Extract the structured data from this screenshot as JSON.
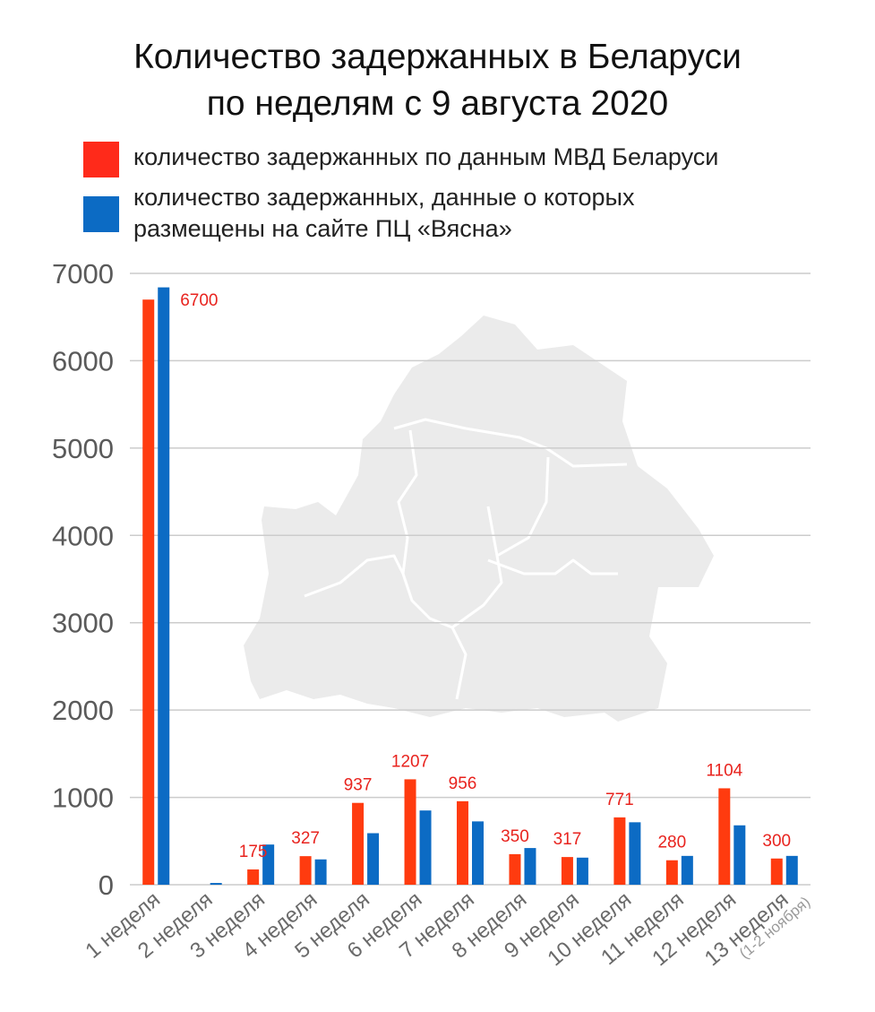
{
  "title_line1": "Количество задержанных в Беларуси",
  "title_line2": "по неделям с 9 августа 2020",
  "colors": {
    "red": "#ff3b0f",
    "blue": "#0c6bc4",
    "grid": "#cccccc",
    "map": "#ebebeb",
    "label_red": "#e8231e"
  },
  "legend": [
    {
      "lines": [
        "количество задержанных по данным МВД Беларуси"
      ]
    },
    {
      "lines": [
        "количество задержанных, данные о которых",
        "размещены на сайте ПЦ «Вясна»"
      ]
    }
  ],
  "chart_data": {
    "type": "bar",
    "title": "Количество задержанных в Беларуси по неделям с 9 августа 2020",
    "categories": [
      "1 неделя",
      "2 неделя",
      "3 неделя",
      "4 неделя",
      "5 неделя",
      "6 неделя",
      "7 неделя",
      "8 неделя",
      "9 неделя",
      "10 неделя",
      "11 неделя",
      "12 неделя",
      "13 неделя"
    ],
    "category_note": {
      "index": 12,
      "text": "(1-2 ноября)"
    },
    "series": [
      {
        "name": "количество задержанных по данным МВД Беларуси",
        "values": [
          6700,
          0,
          175,
          327,
          937,
          1207,
          956,
          350,
          317,
          771,
          280,
          1104,
          300
        ],
        "labels": [
          "6700",
          "",
          "175",
          "327",
          "937",
          "1207",
          "956",
          "350",
          "317",
          "771",
          "280",
          "1104",
          "300"
        ]
      },
      {
        "name": "количество задержанных, данные о которых размещены на сайте ПЦ «Вясна»",
        "values": [
          6840,
          20,
          460,
          290,
          590,
          850,
          725,
          420,
          310,
          715,
          330,
          680,
          330
        ]
      }
    ],
    "y_ticks": [
      "0",
      "1000",
      "2000",
      "3000",
      "4000",
      "5000",
      "6000",
      "7000"
    ],
    "ylim": [
      0,
      7000
    ],
    "grid": true,
    "legend_position": "top"
  }
}
